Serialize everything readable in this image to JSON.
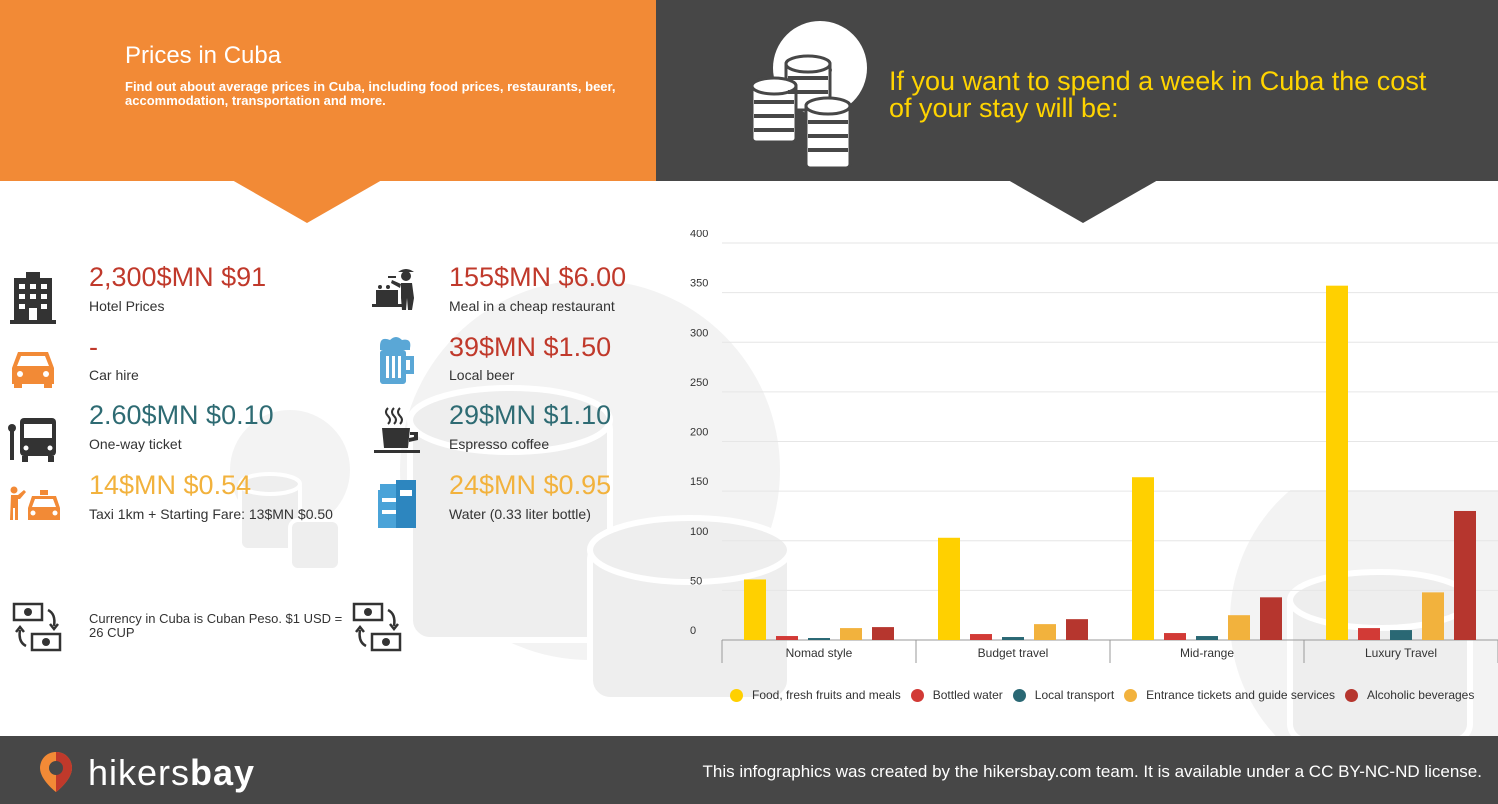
{
  "header": {
    "title": "Prices in Cuba",
    "subtitle": "Find out about average prices in Cuba, including food prices, restaurants, beer, accommodation, transportation and more.",
    "headline": "If you want to spend a week in Cuba the cost of your stay will be:"
  },
  "prices": {
    "hotel": {
      "price": "2,300$MN $91",
      "label": "Hotel Prices",
      "icon": "hotel-icon"
    },
    "car": {
      "price": "-",
      "label": "Car hire",
      "icon": "car-icon"
    },
    "ticket": {
      "price": "2.60$MN $0.10",
      "label": "One-way ticket",
      "icon": "bus-icon"
    },
    "taxi": {
      "price": "14$MN $0.54",
      "label": "Taxi 1km + Starting Fare: 13$MN $0.50",
      "icon": "taxi-icon"
    },
    "meal": {
      "price": "155$MN $6.00",
      "label": "Meal in a cheap restaurant",
      "icon": "restaurant-icon"
    },
    "beer": {
      "price": "39$MN $1.50",
      "label": "Local beer",
      "icon": "beer-icon"
    },
    "coffee": {
      "price": "29$MN $1.10",
      "label": "Espresso coffee",
      "icon": "coffee-icon"
    },
    "water": {
      "price": "24$MN $0.95",
      "label": "Water (0.33 liter bottle)",
      "icon": "water-icon"
    }
  },
  "currency": {
    "text": "Currency in Cuba is Cuban Peso. $1 USD = 26 CUP"
  },
  "colors": {
    "orange": "#f28a36",
    "dark": "#474747",
    "headline": "#ffd400",
    "red": "#c0392b",
    "teal": "#2e6b73",
    "yellow": "#f2b23d"
  },
  "chart_data": {
    "type": "bar",
    "categories": [
      "Nomad style",
      "Budget travel",
      "Mid-range",
      "Luxury Travel"
    ],
    "ylim": [
      0,
      400
    ],
    "yticks": [
      0,
      50,
      100,
      150,
      200,
      250,
      300,
      350,
      400
    ],
    "grid": true,
    "legend_position": "bottom",
    "series": [
      {
        "name": "Food, fresh fruits and meals",
        "color": "#ffd000",
        "values": [
          61,
          103,
          164,
          357
        ]
      },
      {
        "name": "Bottled water",
        "color": "#d23a36",
        "values": [
          4,
          6,
          7,
          12
        ]
      },
      {
        "name": "Local transport",
        "color": "#2a6874",
        "values": [
          2,
          3,
          4,
          10
        ]
      },
      {
        "name": "Entrance tickets and guide services",
        "color": "#f2b23d",
        "values": [
          12,
          16,
          25,
          48
        ]
      },
      {
        "name": "Alcoholic beverages",
        "color": "#b6362e",
        "values": [
          13,
          21,
          43,
          130
        ]
      }
    ]
  },
  "footer": {
    "brand_part1": "hikers",
    "brand_part2": "bay",
    "license": "This infographics was created by the hikersbay.com team. It is available under a CC BY-NC-ND license."
  }
}
